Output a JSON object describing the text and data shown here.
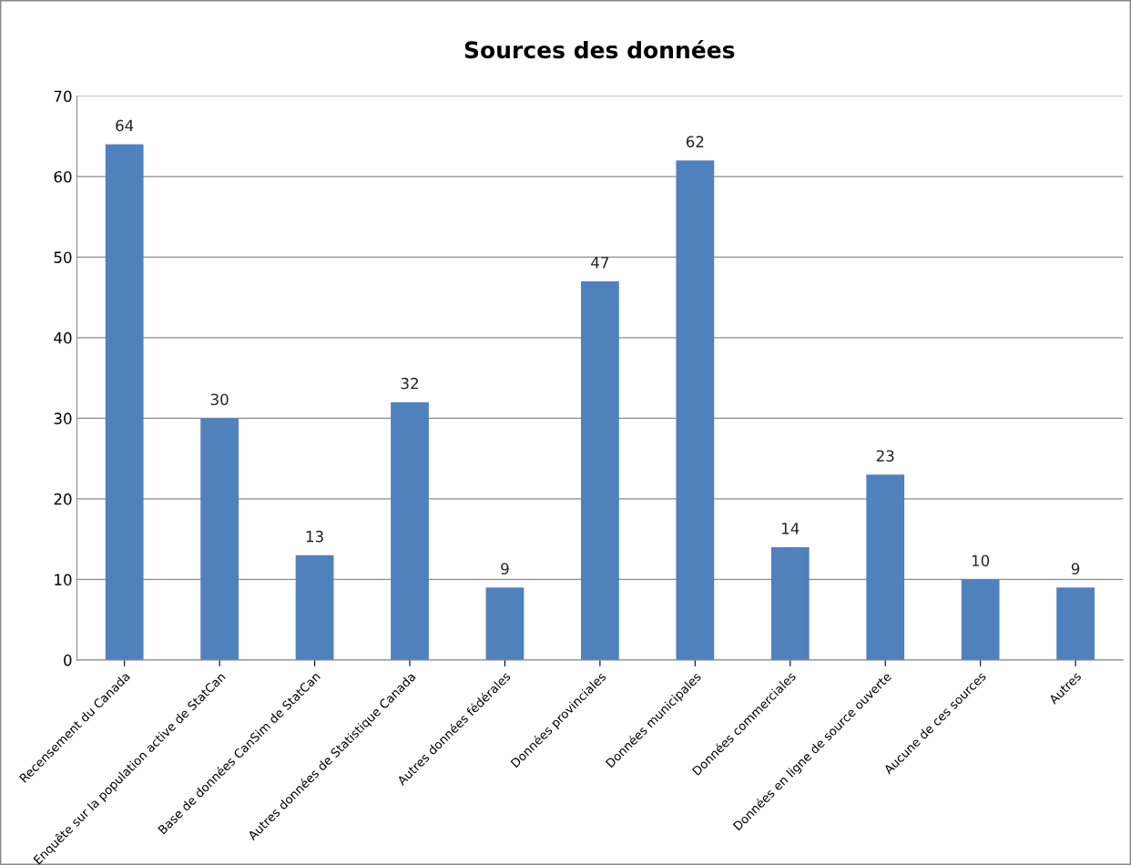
{
  "chart_data": {
    "type": "bar",
    "title": "Sources des données",
    "categories": [
      "Recensement du Canada",
      "Enquête sur la population active de StatCan",
      "Base de données CanSim de StatCan",
      "Autres données de Statistique Canada",
      "Autres données fédérales",
      "Données provinciales",
      "Données municipales",
      "Données commerciales",
      "Données en ligne de source ouverte",
      "Aucune de ces sources",
      "Autres"
    ],
    "values": [
      64,
      30,
      13,
      32,
      9,
      47,
      62,
      14,
      23,
      10,
      9
    ],
    "color": "#4f81bd",
    "ylim": [
      0,
      70
    ],
    "yticks": [
      0,
      10,
      20,
      30,
      40,
      50,
      60,
      70
    ],
    "grid": "y",
    "data_labels": true,
    "legend": false
  }
}
